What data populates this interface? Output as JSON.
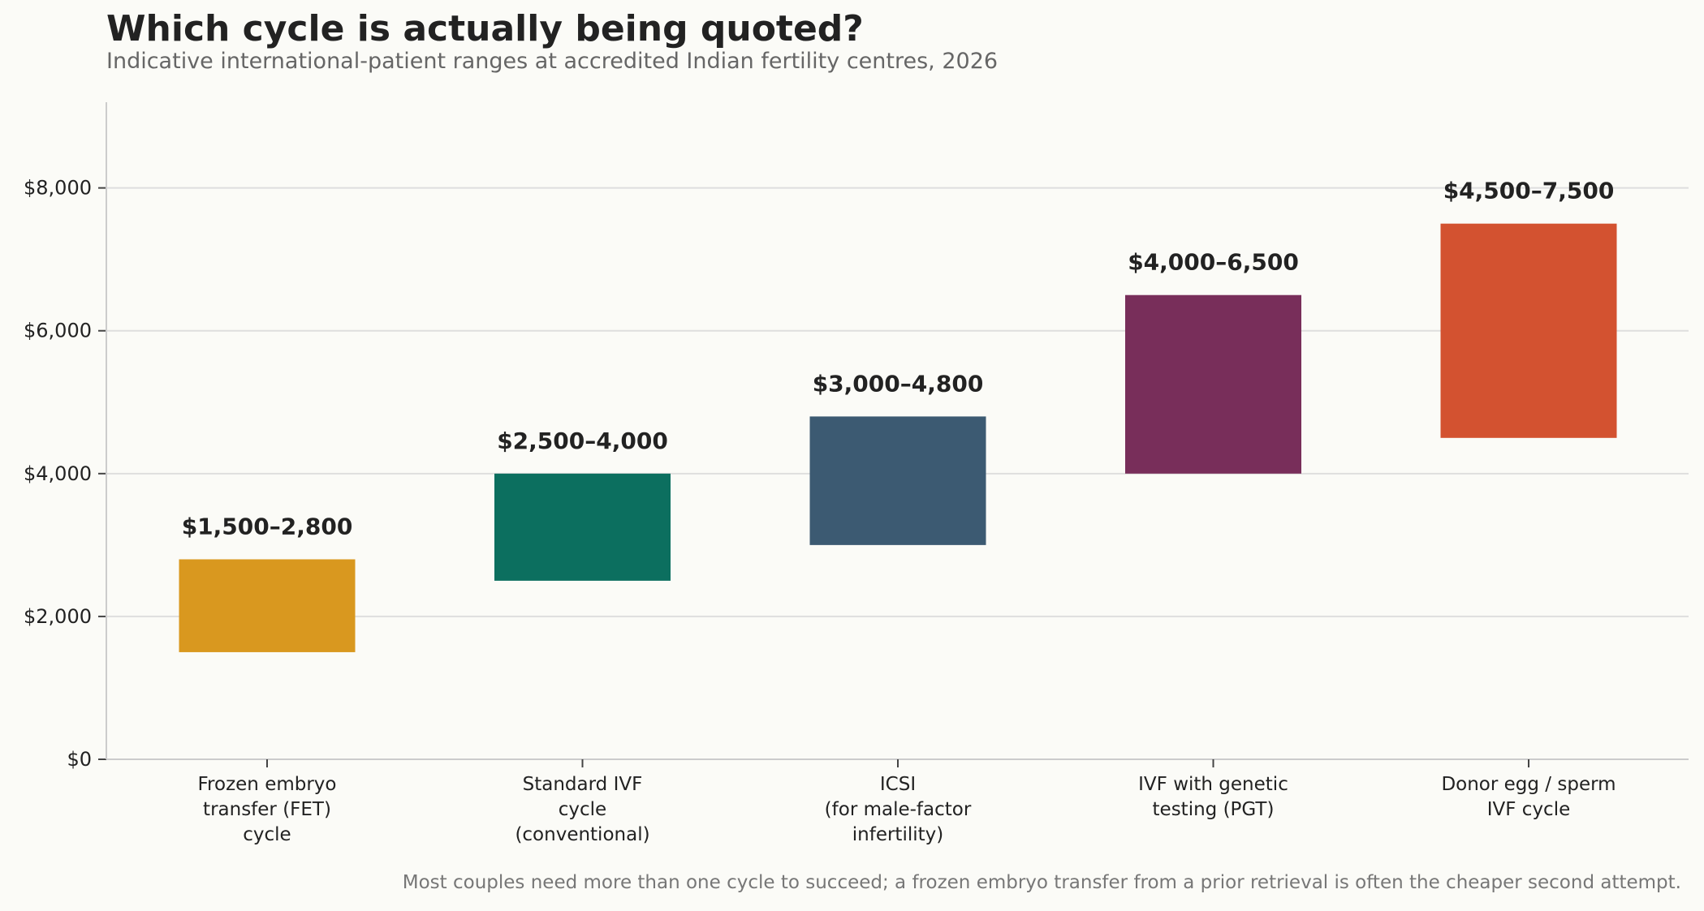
{
  "chart_data": {
    "type": "bar",
    "title": "Which cycle is actually being quoted?",
    "subtitle": "Indicative international-patient ranges at accredited Indian fertility centres, 2026",
    "footnote": "Most couples need more than one cycle to succeed; a frozen embryo transfer from a prior retrieval is often the cheaper second attempt.",
    "xlabel": "",
    "ylabel": "",
    "ylim": [
      0,
      9200
    ],
    "yticks": [
      0,
      2000,
      4000,
      6000,
      8000
    ],
    "ytick_labels": [
      "$0",
      "$2,000",
      "$4,000",
      "$6,000",
      "$8,000"
    ],
    "grid": "horizontal",
    "legend": "none",
    "categories": [
      [
        "Frozen embryo",
        "transfer (FET)",
        "cycle"
      ],
      [
        "Standard IVF",
        "cycle",
        "(conventional)"
      ],
      [
        "ICSI",
        "(for male-factor",
        "infertility)"
      ],
      [
        "IVF with genetic",
        "testing (PGT)"
      ],
      [
        "Donor egg / sperm",
        "IVF cycle"
      ]
    ],
    "ranges": [
      {
        "low": 1500,
        "high": 2800,
        "label": "$1,500–2,800",
        "color": "#d9981f"
      },
      {
        "low": 2500,
        "high": 4000,
        "label": "$2,500–4,000",
        "color": "#0c6f5f"
      },
      {
        "low": 3000,
        "high": 4800,
        "label": "$3,000–4,800",
        "color": "#3c5a72"
      },
      {
        "low": 4000,
        "high": 6500,
        "label": "$4,000–6,500",
        "color": "#782e5a"
      },
      {
        "low": 4500,
        "high": 7500,
        "label": "$4,500–7,500",
        "color": "#d35230"
      }
    ]
  }
}
